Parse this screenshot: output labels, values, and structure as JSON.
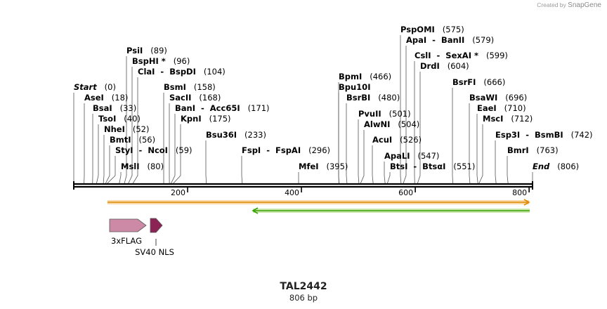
{
  "credit": {
    "prefix": "Created by",
    "brand": "SnapGene"
  },
  "plasmid": {
    "name": "TAL2442",
    "size_label": "806 bp",
    "length": 806
  },
  "axis": {
    "ticks": [
      200,
      400,
      600,
      800
    ]
  },
  "sites": [
    {
      "name": "Start",
      "pos": 0,
      "italic": true
    },
    {
      "name": "AseI",
      "pos": 18
    },
    {
      "name": "BsaI",
      "pos": 33
    },
    {
      "name": "TsoI",
      "pos": 40
    },
    {
      "name": "NheI",
      "pos": 52
    },
    {
      "name": "BmtI",
      "pos": 56
    },
    {
      "name": "StyI  -  NcoI",
      "pos": 59
    },
    {
      "name": "MslI",
      "pos": 80
    },
    {
      "name": "PsiI",
      "pos": 89
    },
    {
      "name": "BspHI *",
      "pos": 96
    },
    {
      "name": "ClaI  -  BspDI",
      "pos": 104
    },
    {
      "name": "BsmI",
      "pos": 158
    },
    {
      "name": "SacII",
      "pos": 168
    },
    {
      "name": "BanI  -  Acc65I",
      "pos": 171
    },
    {
      "name": "KpnI",
      "pos": 175
    },
    {
      "name": "Bsu36I",
      "pos": 233
    },
    {
      "name": "FspI  -  FspAI",
      "pos": 296
    },
    {
      "name": "MfeI",
      "pos": 395
    },
    {
      "name": "BpmI",
      "pos": 466
    },
    {
      "name": "Bpu10I",
      "pos": 466,
      "no_pos": true
    },
    {
      "name": "BsrBI",
      "pos": 480
    },
    {
      "name": "PvuII",
      "pos": 501
    },
    {
      "name": "AlwNI",
      "pos": 504
    },
    {
      "name": "AcuI",
      "pos": 526
    },
    {
      "name": "ApaLI",
      "pos": 547
    },
    {
      "name": "BtsI  -  BtsαI",
      "pos": 551
    },
    {
      "name": "PspOMI",
      "pos": 575
    },
    {
      "name": "ApaI  -  BanII",
      "pos": 579
    },
    {
      "name": "CslI  -  SexAI *",
      "pos": 599
    },
    {
      "name": "DrdI",
      "pos": 604
    },
    {
      "name": "BsrFI",
      "pos": 666
    },
    {
      "name": "BsaWI",
      "pos": 696
    },
    {
      "name": "EaeI",
      "pos": 710
    },
    {
      "name": "MscI",
      "pos": 712
    },
    {
      "name": "Esp3I  -  BsmBI",
      "pos": 742
    },
    {
      "name": "BmrI",
      "pos": 763
    },
    {
      "name": "End",
      "pos": 806,
      "italic": true
    }
  ],
  "orf_bar_color": "#e08a00",
  "orf_fill_color": "#f9d9a8",
  "frame_bar_color": "#3aa000",
  "frame_fill_color": "#c8e8b0",
  "features": [
    {
      "name": "3xFLAG",
      "color": "#cc8aa6"
    },
    {
      "name": "SV40 NLS",
      "color": "#8b2355"
    }
  ]
}
